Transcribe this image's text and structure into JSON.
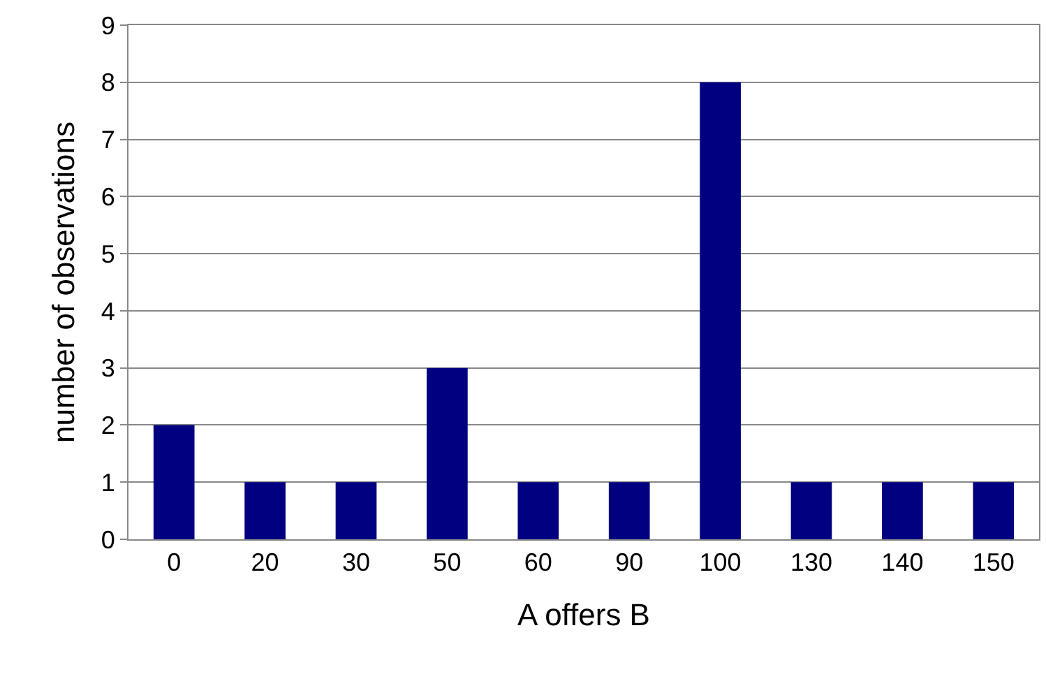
{
  "chart_data": {
    "type": "bar",
    "xlabel": "A offers B",
    "ylabel": "number of observations",
    "categories": [
      "0",
      "20",
      "30",
      "50",
      "60",
      "90",
      "100",
      "130",
      "140",
      "150"
    ],
    "values": [
      2,
      1,
      1,
      3,
      1,
      1,
      8,
      1,
      1,
      1
    ],
    "color": "#000080",
    "ylim": [
      0,
      9
    ],
    "yticks": [
      0,
      1,
      2,
      3,
      4,
      5,
      6,
      7,
      8,
      9
    ],
    "grid": "y"
  }
}
